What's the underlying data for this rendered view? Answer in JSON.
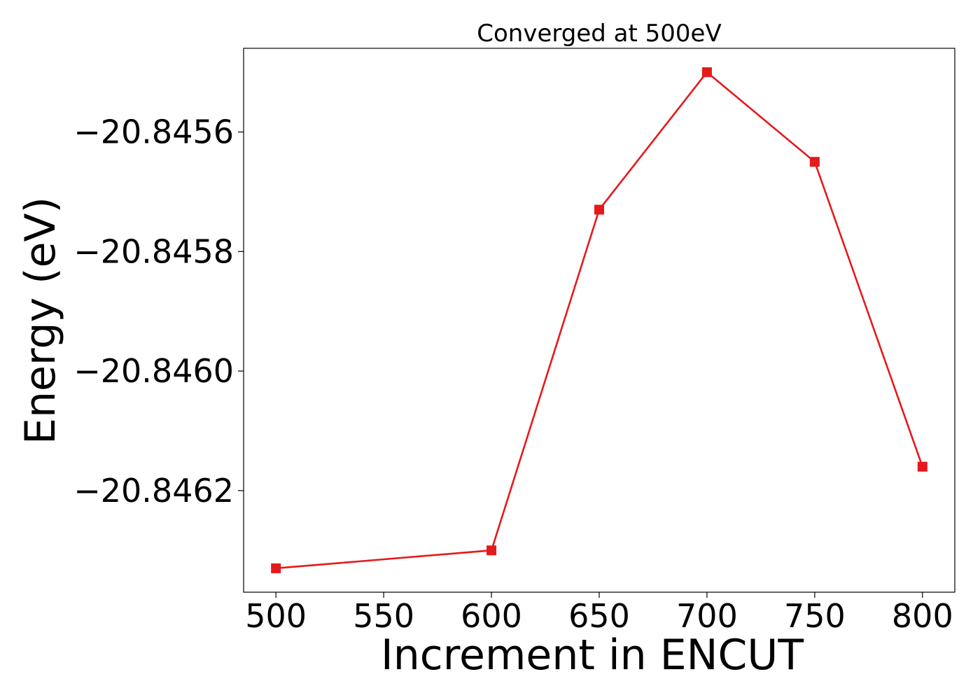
{
  "chart_data": {
    "type": "line",
    "title": "Converged at 500eV",
    "xlabel": "Increment in ENCUT",
    "ylabel": "Energy (eV)",
    "x": [
      500,
      600,
      650,
      700,
      750,
      800
    ],
    "series": [
      {
        "values": [
          -20.84633,
          -20.8463,
          -20.84573,
          -20.8455,
          -20.84565,
          -20.84616
        ],
        "color": "#e41a1c",
        "marker": "square"
      }
    ],
    "xticks": [
      500,
      550,
      600,
      650,
      700,
      750,
      800
    ],
    "xtick_labels": [
      "500",
      "550",
      "600",
      "650",
      "700",
      "750",
      "800"
    ],
    "yticks": [
      -20.8456,
      -20.8458,
      -20.846,
      -20.8462
    ],
    "ytick_labels": [
      "−20.8456",
      "−20.8458",
      "−20.8460",
      "−20.8462"
    ],
    "xlim": [
      485,
      815
    ],
    "ylim": [
      -20.84637,
      -20.84546
    ],
    "grid": false,
    "legend": "none"
  }
}
